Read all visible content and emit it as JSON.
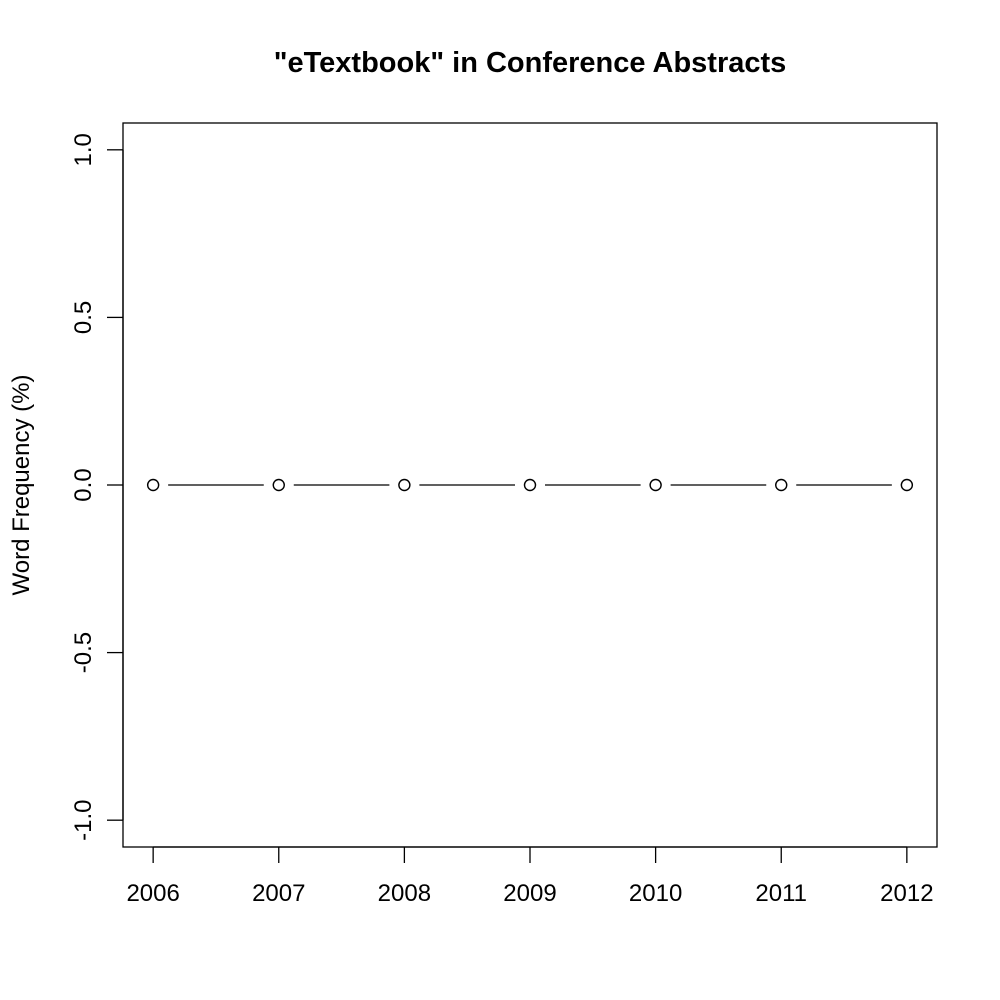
{
  "chart_data": {
    "type": "line",
    "title": "\"eTextbook\" in Conference Abstracts",
    "xlabel": "",
    "ylabel": "Word Frequency (%)",
    "x": [
      2006,
      2007,
      2008,
      2009,
      2010,
      2011,
      2012
    ],
    "x_tick_labels": [
      "2006",
      "2007",
      "2008",
      "2009",
      "2010",
      "2011",
      "2012"
    ],
    "y_ticks": [
      -1.0,
      -0.5,
      0.0,
      0.5,
      1.0
    ],
    "y_tick_labels": [
      "-1.0",
      "-0.5",
      "0.0",
      "0.5",
      "1.0"
    ],
    "xlim": [
      2005.76,
      2012.24
    ],
    "ylim": [
      -1.08,
      1.08
    ],
    "series": [
      {
        "values": [
          0,
          0,
          0,
          0,
          0,
          0,
          0
        ],
        "marker": "open-circle",
        "line": "solid",
        "color": "#000000"
      }
    ],
    "grid": false,
    "legend": "none"
  }
}
